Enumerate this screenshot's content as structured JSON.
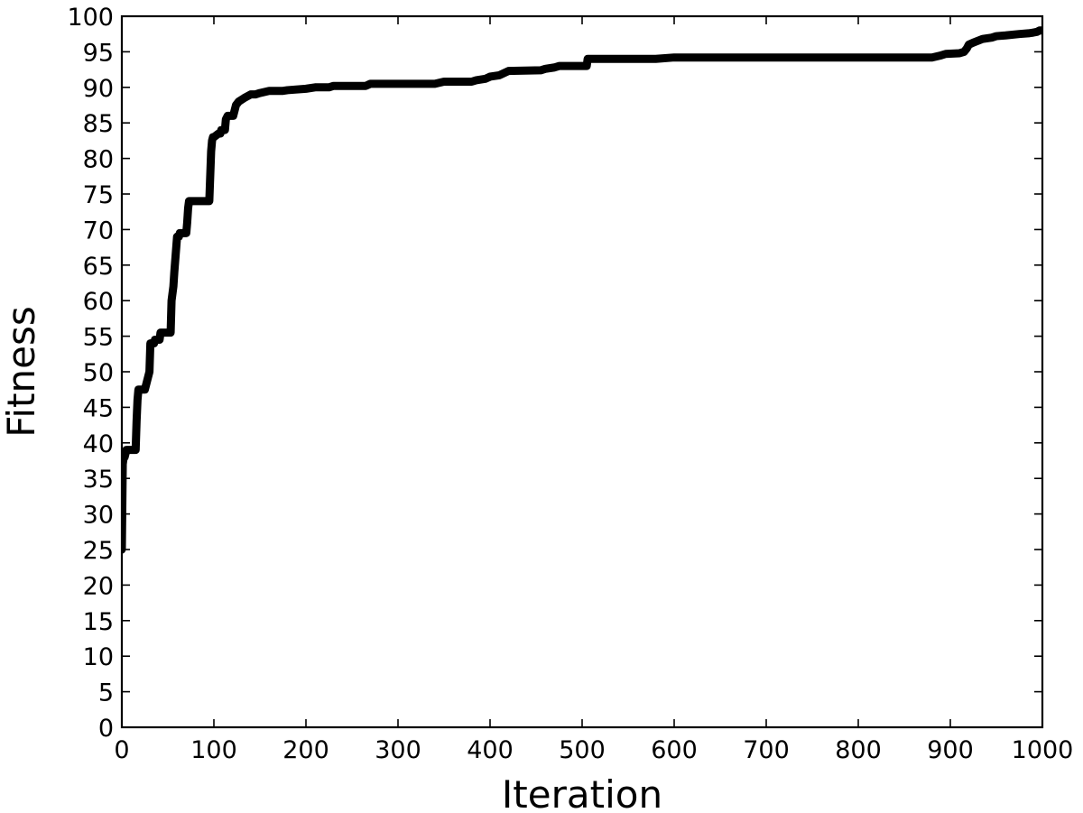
{
  "chart_data": {
    "type": "line",
    "title": "",
    "xlabel": "Iteration",
    "ylabel": "Fitness",
    "xlim": [
      0,
      1000
    ],
    "ylim": [
      0,
      100
    ],
    "x_ticks": [
      0,
      100,
      200,
      300,
      400,
      500,
      600,
      700,
      800,
      900,
      1000
    ],
    "y_ticks": [
      0,
      5,
      10,
      15,
      20,
      25,
      30,
      35,
      40,
      45,
      50,
      55,
      60,
      65,
      70,
      75,
      80,
      85,
      90,
      95,
      100
    ],
    "x_tick_labels": [
      "0",
      "100",
      "200",
      "300",
      "400",
      "500",
      "600",
      "700",
      "800",
      "900",
      "1000"
    ],
    "y_tick_labels": [
      "0",
      "5",
      "10",
      "15",
      "20",
      "25",
      "30",
      "35",
      "40",
      "45",
      "50",
      "55",
      "60",
      "65",
      "70",
      "75",
      "80",
      "85",
      "90",
      "95",
      "100"
    ],
    "grid": false,
    "line_color": "#000000",
    "series": [
      {
        "x": [
          0,
          1,
          2,
          3,
          5,
          8,
          15,
          16,
          17,
          18,
          25,
          27,
          28,
          30,
          31,
          35,
          36,
          41,
          42,
          47,
          48,
          53,
          54,
          56,
          57,
          60,
          61,
          62,
          63,
          70,
          71,
          72,
          73,
          74,
          76,
          77,
          80,
          82,
          88,
          95,
          97,
          98,
          99,
          100,
          105,
          107,
          108,
          112,
          113,
          115,
          118,
          121,
          124,
          127,
          133,
          140,
          145,
          150,
          160,
          170,
          175,
          180,
          200,
          210,
          225,
          230,
          265,
          270,
          300,
          330,
          340,
          350,
          380,
          385,
          395,
          400,
          410,
          415,
          420,
          455,
          460,
          470,
          475,
          500,
          505,
          506,
          520,
          540,
          560,
          570,
          580,
          600,
          650,
          700,
          800,
          880,
          890,
          895,
          910,
          915,
          918,
          920,
          925,
          935,
          945,
          950,
          960,
          975,
          985,
          990,
          994,
          997,
          1000
        ],
        "y": [
          25,
          37,
          38,
          38,
          39,
          39,
          39,
          43,
          46,
          47.5,
          47.5,
          48.5,
          49,
          50,
          54,
          54,
          54.5,
          54.5,
          55.5,
          55.5,
          55.5,
          55.5,
          60,
          62,
          64,
          69,
          69,
          69,
          69.5,
          69.5,
          71,
          73,
          74,
          74,
          74,
          74,
          74,
          74,
          74,
          74,
          81,
          82.5,
          83,
          83,
          83.5,
          83.5,
          84,
          84,
          85.5,
          86,
          86,
          86,
          87.5,
          88,
          88.5,
          89,
          89,
          89.2,
          89.5,
          89.5,
          89.5,
          89.6,
          89.8,
          90,
          90,
          90.2,
          90.2,
          90.5,
          90.5,
          90.5,
          90.5,
          90.8,
          90.8,
          91,
          91.2,
          91.5,
          91.7,
          92,
          92.3,
          92.4,
          92.6,
          92.8,
          93,
          93,
          93,
          94,
          94,
          94,
          94,
          94,
          94,
          94.2,
          94.2,
          94.2,
          94.2,
          94.2,
          94.5,
          94.7,
          94.8,
          95,
          95.5,
          96,
          96.3,
          96.8,
          97,
          97.2,
          97.3,
          97.5,
          97.6,
          97.7,
          97.8,
          98,
          98
        ]
      }
    ]
  }
}
